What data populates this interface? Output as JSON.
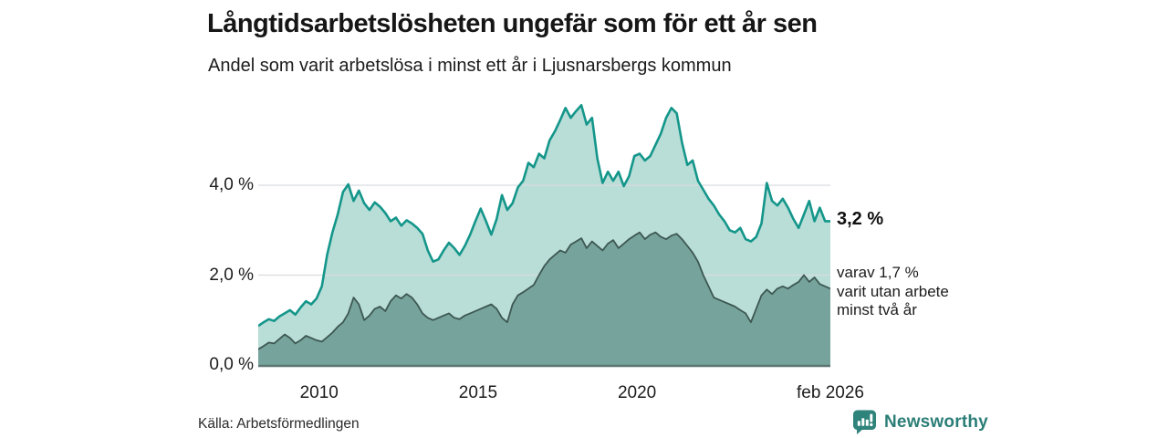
{
  "header": {
    "title": "Långtidsarbetslösheten ungefär som för ett år sen",
    "subtitle": "Andel som varit arbetslösa i minst ett år i Ljusnarsbergs kommun"
  },
  "chart_data": {
    "type": "area",
    "title": "Långtidsarbetslösheten ungefär som för ett år sen",
    "subtitle": "Andel som varit arbetslösa i minst ett år i Ljusnarsbergs kommun",
    "unit": "%",
    "x_start_year": 2008.0833,
    "x_end_year": 2026.0833,
    "x_step_years": 0.1667,
    "ylim": [
      0,
      6
    ],
    "grid": "horizontal",
    "y_ticks": [
      {
        "label": "0,0 %",
        "value": 0
      },
      {
        "label": "2,0 %",
        "value": 2
      },
      {
        "label": "4,0 %",
        "value": 4
      }
    ],
    "x_ticks": [
      {
        "label": "2010",
        "year": 2010
      },
      {
        "label": "2015",
        "year": 2015
      },
      {
        "label": "2020",
        "year": 2020
      },
      {
        "label": "feb 2026",
        "year": 2026.0833
      }
    ],
    "series": [
      {
        "name": "Andel som varit arbetslösa i minst ett år",
        "line_color": "#14968a",
        "fill_color": "#b9ddd7",
        "line_width": 2.6,
        "end_value_label": "3,2 %",
        "values": [
          0.87,
          0.95,
          1.02,
          0.98,
          1.08,
          1.15,
          1.22,
          1.12,
          1.28,
          1.42,
          1.35,
          1.48,
          1.75,
          2.45,
          2.95,
          3.35,
          3.85,
          4.02,
          3.65,
          3.88,
          3.6,
          3.45,
          3.62,
          3.52,
          3.38,
          3.2,
          3.28,
          3.1,
          3.22,
          3.15,
          3.05,
          2.92,
          2.55,
          2.3,
          2.35,
          2.55,
          2.72,
          2.6,
          2.45,
          2.65,
          2.9,
          3.2,
          3.48,
          3.2,
          2.9,
          3.25,
          3.78,
          3.45,
          3.6,
          3.95,
          4.1,
          4.5,
          4.4,
          4.7,
          4.6,
          5.0,
          5.2,
          5.45,
          5.72,
          5.5,
          5.65,
          5.78,
          5.35,
          5.5,
          4.6,
          4.05,
          4.3,
          4.1,
          4.3,
          3.98,
          4.2,
          4.65,
          4.7,
          4.55,
          4.65,
          4.9,
          5.15,
          5.5,
          5.72,
          5.6,
          4.95,
          4.45,
          4.55,
          4.1,
          3.9,
          3.7,
          3.55,
          3.35,
          3.2,
          3.0,
          2.95,
          3.05,
          2.8,
          2.75,
          2.85,
          3.15,
          4.05,
          3.65,
          3.55,
          3.7,
          3.5,
          3.25,
          3.05,
          3.35,
          3.65,
          3.2,
          3.5,
          3.2,
          3.2
        ]
      },
      {
        "name": "varav varit utan arbete minst två år",
        "line_color": "#3d5751",
        "fill_color": "#76a49c",
        "line_width": 1.8,
        "end_value_label": "varav 1,7 %",
        "values": [
          0.35,
          0.42,
          0.5,
          0.48,
          0.58,
          0.68,
          0.6,
          0.48,
          0.55,
          0.65,
          0.6,
          0.55,
          0.52,
          0.62,
          0.72,
          0.85,
          0.95,
          1.15,
          1.5,
          1.35,
          1.0,
          1.1,
          1.25,
          1.3,
          1.2,
          1.42,
          1.55,
          1.48,
          1.58,
          1.5,
          1.35,
          1.15,
          1.05,
          1.0,
          1.05,
          1.1,
          1.15,
          1.05,
          1.02,
          1.1,
          1.15,
          1.2,
          1.25,
          1.3,
          1.35,
          1.25,
          1.05,
          0.95,
          1.35,
          1.55,
          1.62,
          1.7,
          1.78,
          2.0,
          2.2,
          2.35,
          2.45,
          2.55,
          2.5,
          2.68,
          2.75,
          2.82,
          2.6,
          2.75,
          2.65,
          2.55,
          2.7,
          2.78,
          2.6,
          2.7,
          2.8,
          2.88,
          2.95,
          2.8,
          2.9,
          2.95,
          2.85,
          2.8,
          2.88,
          2.92,
          2.8,
          2.65,
          2.5,
          2.3,
          2.0,
          1.75,
          1.5,
          1.45,
          1.4,
          1.35,
          1.3,
          1.22,
          1.15,
          0.95,
          1.25,
          1.55,
          1.68,
          1.58,
          1.7,
          1.75,
          1.7,
          1.78,
          1.85,
          2.0,
          1.85,
          1.95,
          1.8,
          1.75,
          1.7
        ]
      }
    ],
    "gridline_color": "#d9dce0",
    "axis_line_color": "#5c7672",
    "legend_position": "none"
  },
  "annotations": {
    "outer_end": "3,2 %",
    "inner_lines": [
      "varav 1,7 %",
      "varit utan arbete",
      "minst två år"
    ]
  },
  "footer": {
    "source": "Källa: Arbetsförmedlingen",
    "brand_name": "Newsworthy",
    "brand_color": "#2b7e77",
    "brand_icon_color": "#2e837b"
  }
}
